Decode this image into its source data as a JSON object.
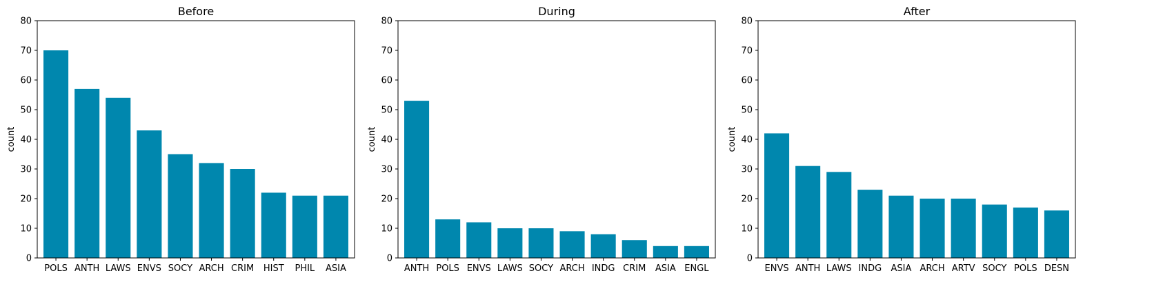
{
  "chart_data": [
    {
      "type": "bar",
      "title": "Before",
      "xlabel": "",
      "ylabel": "count",
      "ylim": [
        0,
        80
      ],
      "yticks": [
        0,
        10,
        20,
        30,
        40,
        50,
        60,
        70,
        80
      ],
      "grid": false,
      "color": "#0087ae",
      "categories": [
        "POLS",
        "ANTH",
        "LAWS",
        "ENVS",
        "SOCY",
        "ARCH",
        "CRIM",
        "HIST",
        "PHIL",
        "ASIA"
      ],
      "values": [
        70,
        57,
        54,
        43,
        35,
        32,
        30,
        22,
        21,
        21
      ]
    },
    {
      "type": "bar",
      "title": "During",
      "xlabel": "",
      "ylabel": "count",
      "ylim": [
        0,
        80
      ],
      "yticks": [
        0,
        10,
        20,
        30,
        40,
        50,
        60,
        70,
        80
      ],
      "grid": false,
      "color": "#0087ae",
      "categories": [
        "ANTH",
        "POLS",
        "ENVS",
        "LAWS",
        "SOCY",
        "ARCH",
        "INDG",
        "CRIM",
        "ASIA",
        "ENGL"
      ],
      "values": [
        53,
        13,
        12,
        10,
        10,
        9,
        8,
        6,
        4,
        4
      ]
    },
    {
      "type": "bar",
      "title": "After",
      "xlabel": "",
      "ylabel": "count",
      "ylim": [
        0,
        80
      ],
      "yticks": [
        0,
        10,
        20,
        30,
        40,
        50,
        60,
        70,
        80
      ],
      "grid": false,
      "color": "#0087ae",
      "categories": [
        "ENVS",
        "ANTH",
        "LAWS",
        "INDG",
        "ASIA",
        "ARCH",
        "ARTV",
        "SOCY",
        "POLS",
        "DESN"
      ],
      "values": [
        42,
        31,
        29,
        23,
        21,
        20,
        20,
        18,
        17,
        16
      ]
    }
  ]
}
